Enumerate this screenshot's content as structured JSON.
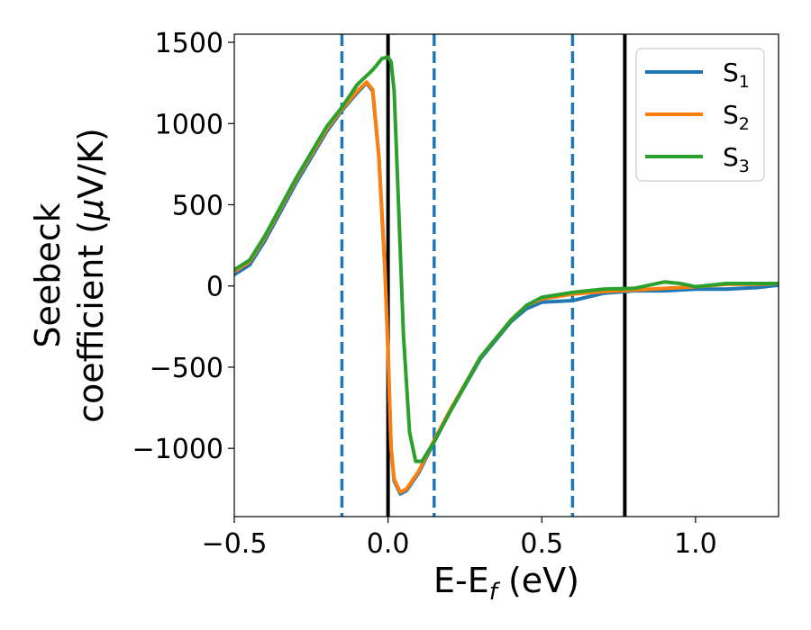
{
  "chart_data": {
    "type": "line",
    "xlabel": {
      "main": "E-E",
      "sub": "f",
      "unit": " (eV)"
    },
    "ylabel": {
      "line1": "Seebeck",
      "line2": "coefficient  (",
      "mu": "μ",
      "unit": "V/K)"
    },
    "xlim": [
      -0.5,
      1.27
    ],
    "ylim": [
      -1420,
      1550
    ],
    "xticks": [
      -0.5,
      0.0,
      0.5,
      1.0
    ],
    "xtick_labels": [
      "−0.5",
      "0.0",
      "0.5",
      "1.0"
    ],
    "yticks": [
      1500,
      1000,
      500,
      0,
      -500,
      -1000
    ],
    "ytick_labels": [
      "1500",
      "1000",
      "500",
      "0",
      "−500",
      "−1000"
    ],
    "grid": false,
    "legend_position": "top-right",
    "vlines": [
      {
        "x": -0.15,
        "style": "dashed",
        "color": "#1f77b4"
      },
      {
        "x": 0.0,
        "style": "solid",
        "color": "#000000"
      },
      {
        "x": 0.15,
        "style": "dashed",
        "color": "#1f77b4"
      },
      {
        "x": 0.6,
        "style": "dashed",
        "color": "#1f77b4"
      },
      {
        "x": 0.77,
        "style": "solid",
        "color": "#000000"
      }
    ],
    "series": [
      {
        "name": "S",
        "sub": "1",
        "color": "#1f77b4",
        "points": [
          [
            -0.5,
            70
          ],
          [
            -0.45,
            130
          ],
          [
            -0.4,
            280
          ],
          [
            -0.3,
            630
          ],
          [
            -0.2,
            950
          ],
          [
            -0.15,
            1080
          ],
          [
            -0.1,
            1190
          ],
          [
            -0.07,
            1250
          ],
          [
            -0.05,
            1200
          ],
          [
            -0.03,
            800
          ],
          [
            -0.01,
            100
          ],
          [
            0.0,
            -400
          ],
          [
            0.01,
            -1000
          ],
          [
            0.02,
            -1200
          ],
          [
            0.04,
            -1280
          ],
          [
            0.06,
            -1260
          ],
          [
            0.1,
            -1150
          ],
          [
            0.15,
            -960
          ],
          [
            0.2,
            -780
          ],
          [
            0.3,
            -450
          ],
          [
            0.4,
            -220
          ],
          [
            0.45,
            -140
          ],
          [
            0.5,
            -100
          ],
          [
            0.6,
            -90
          ],
          [
            0.7,
            -45
          ],
          [
            0.8,
            -30
          ],
          [
            0.9,
            -30
          ],
          [
            1.0,
            -20
          ],
          [
            1.1,
            -20
          ],
          [
            1.2,
            -10
          ],
          [
            1.27,
            5
          ]
        ]
      },
      {
        "name": "S",
        "sub": "2",
        "color": "#ff7f0e",
        "points": [
          [
            -0.5,
            90
          ],
          [
            -0.45,
            150
          ],
          [
            -0.4,
            300
          ],
          [
            -0.3,
            650
          ],
          [
            -0.2,
            965
          ],
          [
            -0.15,
            1090
          ],
          [
            -0.1,
            1200
          ],
          [
            -0.07,
            1255
          ],
          [
            -0.05,
            1210
          ],
          [
            -0.03,
            800
          ],
          [
            -0.01,
            100
          ],
          [
            0.0,
            -400
          ],
          [
            0.01,
            -1000
          ],
          [
            0.02,
            -1190
          ],
          [
            0.04,
            -1270
          ],
          [
            0.06,
            -1250
          ],
          [
            0.1,
            -1140
          ],
          [
            0.15,
            -950
          ],
          [
            0.2,
            -770
          ],
          [
            0.3,
            -440
          ],
          [
            0.4,
            -210
          ],
          [
            0.45,
            -120
          ],
          [
            0.5,
            -80
          ],
          [
            0.6,
            -50
          ],
          [
            0.7,
            -35
          ],
          [
            0.8,
            -25
          ],
          [
            0.9,
            -15
          ],
          [
            1.0,
            -5
          ],
          [
            1.1,
            10
          ],
          [
            1.2,
            10
          ],
          [
            1.27,
            15
          ]
        ]
      },
      {
        "name": "S",
        "sub": "3",
        "color": "#2ca02c",
        "points": [
          [
            -0.5,
            100
          ],
          [
            -0.45,
            160
          ],
          [
            -0.4,
            310
          ],
          [
            -0.3,
            660
          ],
          [
            -0.2,
            980
          ],
          [
            -0.15,
            1100
          ],
          [
            -0.1,
            1240
          ],
          [
            -0.05,
            1330
          ],
          [
            -0.02,
            1400
          ],
          [
            0.0,
            1410
          ],
          [
            0.01,
            1380
          ],
          [
            0.02,
            1200
          ],
          [
            0.03,
            700
          ],
          [
            0.05,
            -300
          ],
          [
            0.07,
            -900
          ],
          [
            0.09,
            -1080
          ],
          [
            0.11,
            -1080
          ],
          [
            0.15,
            -960
          ],
          [
            0.2,
            -780
          ],
          [
            0.3,
            -440
          ],
          [
            0.4,
            -210
          ],
          [
            0.45,
            -120
          ],
          [
            0.5,
            -70
          ],
          [
            0.6,
            -40
          ],
          [
            0.7,
            -20
          ],
          [
            0.8,
            -15
          ],
          [
            0.85,
            5
          ],
          [
            0.9,
            25
          ],
          [
            0.95,
            15
          ],
          [
            1.0,
            -5
          ],
          [
            1.1,
            15
          ],
          [
            1.2,
            15
          ],
          [
            1.27,
            15
          ]
        ]
      }
    ]
  }
}
